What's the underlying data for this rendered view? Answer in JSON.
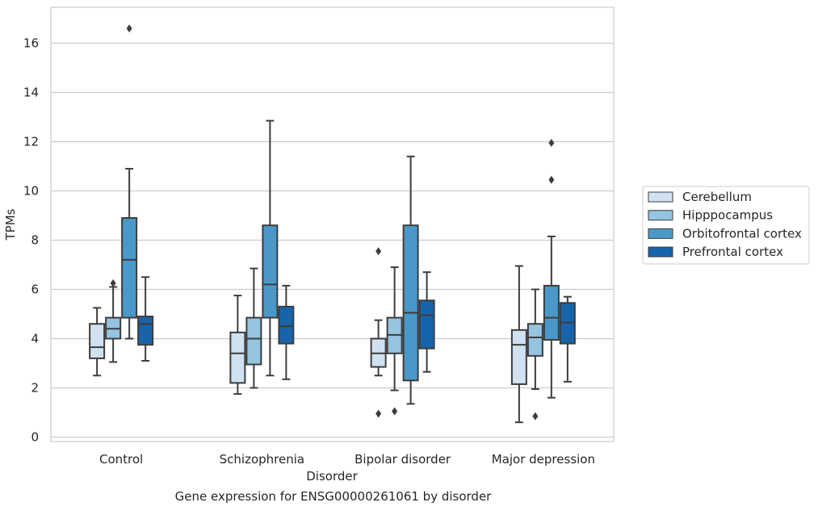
{
  "chart_data": {
    "type": "box",
    "xlabel": "Disorder",
    "ylabel": "TPMs",
    "caption": "Gene expression for ENSG00000261061 by disorder",
    "categories": [
      "Control",
      "Schizophrenia",
      "Bipolar disorder",
      "Major depression"
    ],
    "ylim": [
      -0.2,
      17.4
    ],
    "yticks": [
      0,
      2,
      4,
      6,
      8,
      10,
      12,
      14,
      16
    ],
    "grid": "horizontal",
    "legend_position": "right",
    "series": [
      {
        "name": "Cerebellum",
        "color": "#d0e1f2",
        "boxes": [
          {
            "q1": 3.2,
            "median": 3.65,
            "q3": 4.6,
            "whisker_low": 2.5,
            "whisker_high": 5.25,
            "outliers": []
          },
          {
            "q1": 2.2,
            "median": 3.4,
            "q3": 4.25,
            "whisker_low": 1.75,
            "whisker_high": 5.75,
            "outliers": []
          },
          {
            "q1": 2.85,
            "median": 3.4,
            "q3": 4.0,
            "whisker_low": 2.5,
            "whisker_high": 4.75,
            "outliers": [
              7.55,
              0.95
            ]
          },
          {
            "q1": 2.15,
            "median": 3.75,
            "q3": 4.35,
            "whisker_low": 0.6,
            "whisker_high": 6.95,
            "outliers": []
          }
        ]
      },
      {
        "name": "Hipppocampus",
        "color": "#94c4df",
        "boxes": [
          {
            "q1": 4.0,
            "median": 4.4,
            "q3": 4.85,
            "whisker_low": 3.05,
            "whisker_high": 6.1,
            "outliers": [
              6.25
            ]
          },
          {
            "q1": 2.95,
            "median": 4.0,
            "q3": 4.85,
            "whisker_low": 2.0,
            "whisker_high": 6.85,
            "outliers": []
          },
          {
            "q1": 3.4,
            "median": 4.15,
            "q3": 4.85,
            "whisker_low": 1.9,
            "whisker_high": 6.9,
            "outliers": [
              1.05
            ]
          },
          {
            "q1": 3.3,
            "median": 4.05,
            "q3": 4.6,
            "whisker_low": 1.95,
            "whisker_high": 6.0,
            "outliers": [
              0.85
            ]
          }
        ]
      },
      {
        "name": "Orbitofrontal cortex",
        "color": "#4a98c9",
        "boxes": [
          {
            "q1": 4.85,
            "median": 7.2,
            "q3": 8.9,
            "whisker_low": 4.0,
            "whisker_high": 10.9,
            "outliers": [
              16.6
            ]
          },
          {
            "q1": 4.85,
            "median": 6.2,
            "q3": 8.6,
            "whisker_low": 2.5,
            "whisker_high": 12.85,
            "outliers": []
          },
          {
            "q1": 2.3,
            "median": 5.05,
            "q3": 8.6,
            "whisker_low": 1.35,
            "whisker_high": 11.4,
            "outliers": []
          },
          {
            "q1": 3.95,
            "median": 4.85,
            "q3": 6.15,
            "whisker_low": 1.6,
            "whisker_high": 8.15,
            "outliers": [
              11.95,
              10.45
            ]
          }
        ]
      },
      {
        "name": "Prefrontal cortex",
        "color": "#1764ab",
        "boxes": [
          {
            "q1": 3.75,
            "median": 4.6,
            "q3": 4.9,
            "whisker_low": 3.1,
            "whisker_high": 6.5,
            "outliers": []
          },
          {
            "q1": 3.8,
            "median": 4.5,
            "q3": 5.3,
            "whisker_low": 2.35,
            "whisker_high": 6.15,
            "outliers": []
          },
          {
            "q1": 3.6,
            "median": 4.95,
            "q3": 5.55,
            "whisker_low": 2.65,
            "whisker_high": 6.7,
            "outliers": []
          },
          {
            "q1": 3.8,
            "median": 4.65,
            "q3": 5.45,
            "whisker_low": 2.25,
            "whisker_high": 5.7,
            "outliers": []
          }
        ]
      }
    ]
  }
}
